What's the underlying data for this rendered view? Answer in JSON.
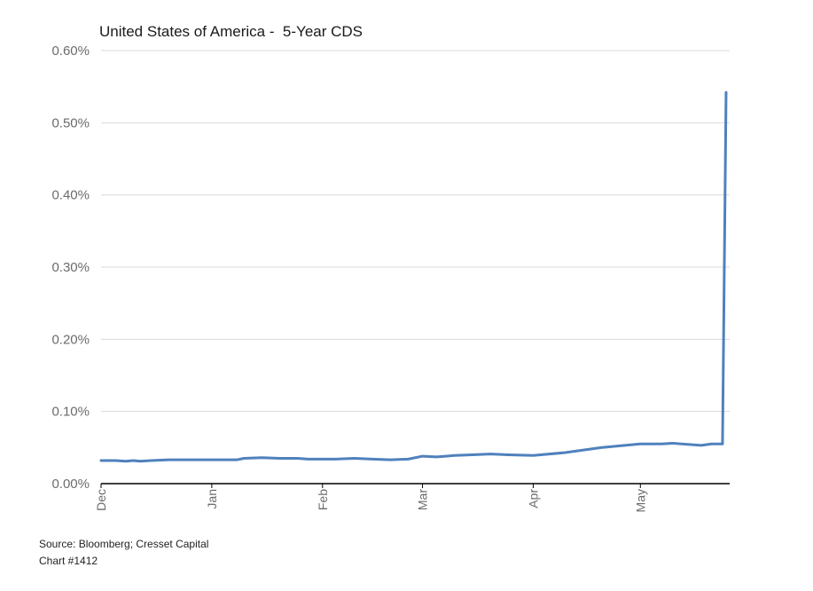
{
  "chart_data": {
    "type": "line",
    "title": "United States of America -  5-Year CDS",
    "xlabel": "",
    "ylabel": "",
    "ylim": [
      0,
      0.6
    ],
    "y_ticks": [
      "0.00%",
      "0.10%",
      "0.20%",
      "0.30%",
      "0.40%",
      "0.50%",
      "0.60%"
    ],
    "y_tick_values": [
      0,
      0.1,
      0.2,
      0.3,
      0.4,
      0.5,
      0.6
    ],
    "x_range": [
      "2022-12-01",
      "2023-05-26"
    ],
    "x_ticks": [
      {
        "label": "Dec",
        "date": "2022-12-01"
      },
      {
        "label": "Jan",
        "date": "2023-01-01"
      },
      {
        "label": "Feb",
        "date": "2023-02-01"
      },
      {
        "label": "Mar",
        "date": "2023-03-01"
      },
      {
        "label": "Apr",
        "date": "2023-04-01"
      },
      {
        "label": "May",
        "date": "2023-05-01"
      }
    ],
    "grid": "horizontal",
    "line_color": "#4f81bd",
    "series": [
      {
        "x": [
          "2022-12-01",
          "2022-12-05",
          "2022-12-08",
          "2022-12-10",
          "2022-12-12",
          "2022-12-15",
          "2022-12-20",
          "2022-12-25",
          "2023-01-01",
          "2023-01-08",
          "2023-01-10",
          "2023-01-15",
          "2023-01-20",
          "2023-01-25",
          "2023-01-28",
          "2023-02-01",
          "2023-02-05",
          "2023-02-10",
          "2023-02-15",
          "2023-02-20",
          "2023-02-25",
          "2023-03-01",
          "2023-03-05",
          "2023-03-10",
          "2023-03-15",
          "2023-03-20",
          "2023-03-25",
          "2023-04-01",
          "2023-04-10",
          "2023-04-20",
          "2023-05-01",
          "2023-05-07",
          "2023-05-10",
          "2023-05-18",
          "2023-05-21",
          "2023-05-24",
          "2023-05-25"
        ],
        "values": [
          0.032,
          0.032,
          0.031,
          0.032,
          0.031,
          0.032,
          0.033,
          0.033,
          0.033,
          0.033,
          0.035,
          0.036,
          0.035,
          0.035,
          0.034,
          0.034,
          0.034,
          0.035,
          0.034,
          0.033,
          0.034,
          0.038,
          0.037,
          0.039,
          0.04,
          0.041,
          0.04,
          0.039,
          0.043,
          0.05,
          0.055,
          0.055,
          0.056,
          0.053,
          0.055,
          0.055,
          0.542
        ]
      }
    ]
  },
  "footer": {
    "source": "Source: Bloomberg; Cresset Capital",
    "chart_number": "Chart #1412"
  }
}
